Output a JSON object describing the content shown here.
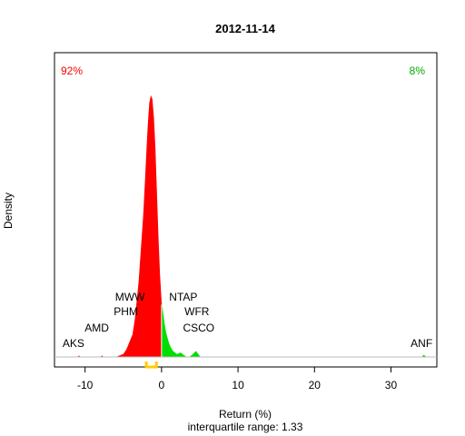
{
  "chart_data": {
    "type": "area",
    "title": "2012-11-14",
    "xlabel": "Return (%)",
    "ylabel": "Density",
    "subtitle": "interquartile range: 1.33",
    "xlim": [
      -14,
      36
    ],
    "ylim": [
      0,
      0.39
    ],
    "x_ticks": [
      -10,
      0,
      10,
      20,
      30
    ],
    "split_x": 0,
    "colors": {
      "negative": "#ff0000",
      "positive": "#00dd00",
      "iqr": "#ffcc00",
      "baseline": "#bbbbbb"
    },
    "density": {
      "x": [
        -11.0,
        -10.8,
        -10.6,
        -9.0,
        -8.0,
        -7.8,
        -7.6,
        -6.0,
        -5.5,
        -5.0,
        -4.6,
        -4.2,
        -4.0,
        -3.8,
        -3.5,
        -3.2,
        -3.0,
        -2.8,
        -2.6,
        -2.4,
        -2.2,
        -2.0,
        -1.8,
        -1.6,
        -1.4,
        -1.2,
        -1.0,
        -0.8,
        -0.6,
        -0.4,
        -0.2,
        0.0,
        0.2,
        0.4,
        0.6,
        0.8,
        1.0,
        1.2,
        1.5,
        2.0,
        2.5,
        3.0,
        3.3,
        3.6,
        4.0,
        4.5,
        4.8,
        5.1,
        5.5,
        6.0,
        33.0,
        34.0,
        34.3,
        34.6,
        35.0
      ],
      "y": [
        0.0,
        0.002,
        0.0,
        0.0,
        0.0,
        0.002,
        0.0,
        0.0,
        0.002,
        0.004,
        0.01,
        0.02,
        0.025,
        0.03,
        0.05,
        0.08,
        0.1,
        0.13,
        0.16,
        0.19,
        0.23,
        0.27,
        0.31,
        0.34,
        0.35,
        0.345,
        0.32,
        0.28,
        0.22,
        0.16,
        0.11,
        0.075,
        0.06,
        0.045,
        0.033,
        0.025,
        0.018,
        0.013,
        0.008,
        0.004,
        0.006,
        0.002,
        0.0,
        0.0,
        0.003,
        0.008,
        0.004,
        0.0,
        0.0,
        0.0,
        0.0,
        0.0,
        0.003,
        0.0,
        0.0
      ]
    },
    "iqr": [
      -2.0,
      -0.67
    ],
    "annotations": {
      "left_pct": "92%",
      "right_pct": "8%",
      "negative_stocks": [
        {
          "name": "MWW",
          "x": -2.9,
          "level": 4
        },
        {
          "name": "PHM",
          "x": -3.8,
          "level": 3
        },
        {
          "name": "AMD",
          "x": -7.6,
          "level": 2
        },
        {
          "name": "AKS",
          "x": -10.8,
          "level": 1
        }
      ],
      "positive_stocks": [
        {
          "name": "NTAP",
          "x": 1.0,
          "level": 4
        },
        {
          "name": "WFR",
          "x": 3.0,
          "level": 3
        },
        {
          "name": "CSCO",
          "x": 2.8,
          "level": 2
        },
        {
          "name": "ANF",
          "x": 34.0,
          "level": 1
        }
      ]
    }
  }
}
